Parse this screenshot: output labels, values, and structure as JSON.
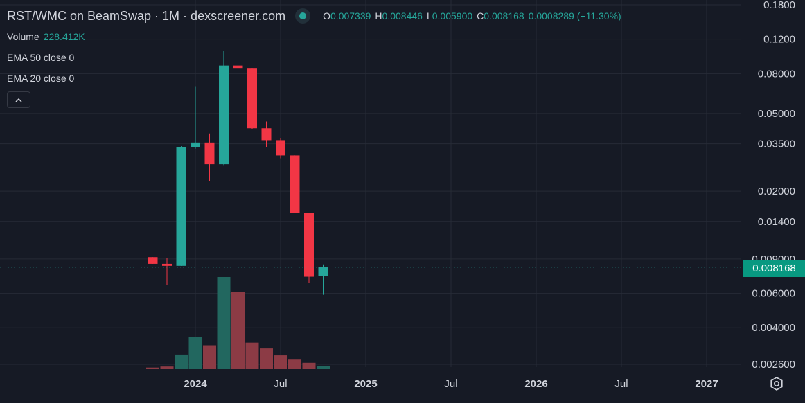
{
  "header": {
    "title": "RST/WMC on BeamSwap · 1M · dexscreener.com",
    "ohlc": {
      "open_label": "O",
      "open": "0.007339",
      "high_label": "H",
      "high": "0.008446",
      "low_label": "L",
      "low": "0.005900",
      "close_label": "C",
      "close": "0.008168",
      "change": "0.0008289 (+11.30%)"
    }
  },
  "indicators": {
    "volume_label": "Volume",
    "volume_value": "228.412K",
    "ema50": "EMA 50 close 0",
    "ema20": "EMA 20 close 0"
  },
  "current_price": "0.008168",
  "colors": {
    "up": "#26a69a",
    "down": "#f23645",
    "up_volume": "#22675f",
    "down_volume": "#8c3b45",
    "background": "#161a25",
    "grid": "#262b36",
    "price_tag": "#089981"
  },
  "icons": {
    "visibility": "eye-dot-icon",
    "collapse": "chevron-up-icon",
    "settings": "gear-icon"
  },
  "chart_data": {
    "type": "candlestick",
    "scale": "log",
    "y_ticks": [
      "0.1800",
      "0.1200",
      "0.08000",
      "0.05000",
      "0.03500",
      "0.02000",
      "0.01400",
      "0.009000",
      "0.006000",
      "0.004000",
      "0.002600"
    ],
    "x_ticks": [
      {
        "label": "2024",
        "date": "2024-01",
        "bold": true
      },
      {
        "label": "Jul",
        "date": "2024-07",
        "bold": false
      },
      {
        "label": "2025",
        "date": "2025-01",
        "bold": true
      },
      {
        "label": "Jul",
        "date": "2025-07",
        "bold": false
      },
      {
        "label": "2026",
        "date": "2026-01",
        "bold": true
      },
      {
        "label": "Jul",
        "date": "2026-07",
        "bold": false
      },
      {
        "label": "2027",
        "date": "2027-01",
        "bold": true
      }
    ],
    "grid": true,
    "candles": [
      {
        "date": "2023-10",
        "open": 0.0092,
        "high": 0.0092,
        "low": 0.0085,
        "close": 0.0085,
        "volume": 0.6
      },
      {
        "date": "2023-11",
        "open": 0.0085,
        "high": 0.0091,
        "low": 0.0066,
        "close": 0.0083,
        "volume": 1.0
      },
      {
        "date": "2023-12",
        "open": 0.0083,
        "high": 0.034,
        "low": 0.0083,
        "close": 0.0335,
        "volume": 5.5
      },
      {
        "date": "2024-01",
        "open": 0.0335,
        "high": 0.069,
        "low": 0.033,
        "close": 0.0355,
        "volume": 12.2
      },
      {
        "date": "2024-02",
        "open": 0.0355,
        "high": 0.0395,
        "low": 0.0225,
        "close": 0.0275,
        "volume": 9.0
      },
      {
        "date": "2024-03",
        "open": 0.0275,
        "high": 0.105,
        "low": 0.027,
        "close": 0.088,
        "volume": 34.7
      },
      {
        "date": "2024-04",
        "open": 0.088,
        "high": 0.125,
        "low": 0.0815,
        "close": 0.0855,
        "volume": 29.2
      },
      {
        "date": "2024-05",
        "open": 0.0855,
        "high": 0.0855,
        "low": 0.0415,
        "close": 0.042,
        "volume": 10.0
      },
      {
        "date": "2024-06",
        "open": 0.042,
        "high": 0.0455,
        "low": 0.0335,
        "close": 0.0365,
        "volume": 7.8
      },
      {
        "date": "2024-07",
        "open": 0.0365,
        "high": 0.0375,
        "low": 0.0295,
        "close": 0.0305,
        "volume": 5.2
      },
      {
        "date": "2024-08",
        "open": 0.0305,
        "high": 0.0305,
        "low": 0.0155,
        "close": 0.0155,
        "volume": 3.6
      },
      {
        "date": "2024-09",
        "open": 0.0155,
        "high": 0.0155,
        "low": 0.0068,
        "close": 0.0073,
        "volume": 2.4
      },
      {
        "date": "2024-10",
        "open": 0.007339,
        "high": 0.008446,
        "low": 0.0059,
        "close": 0.008168,
        "volume": 1.2
      }
    ]
  }
}
